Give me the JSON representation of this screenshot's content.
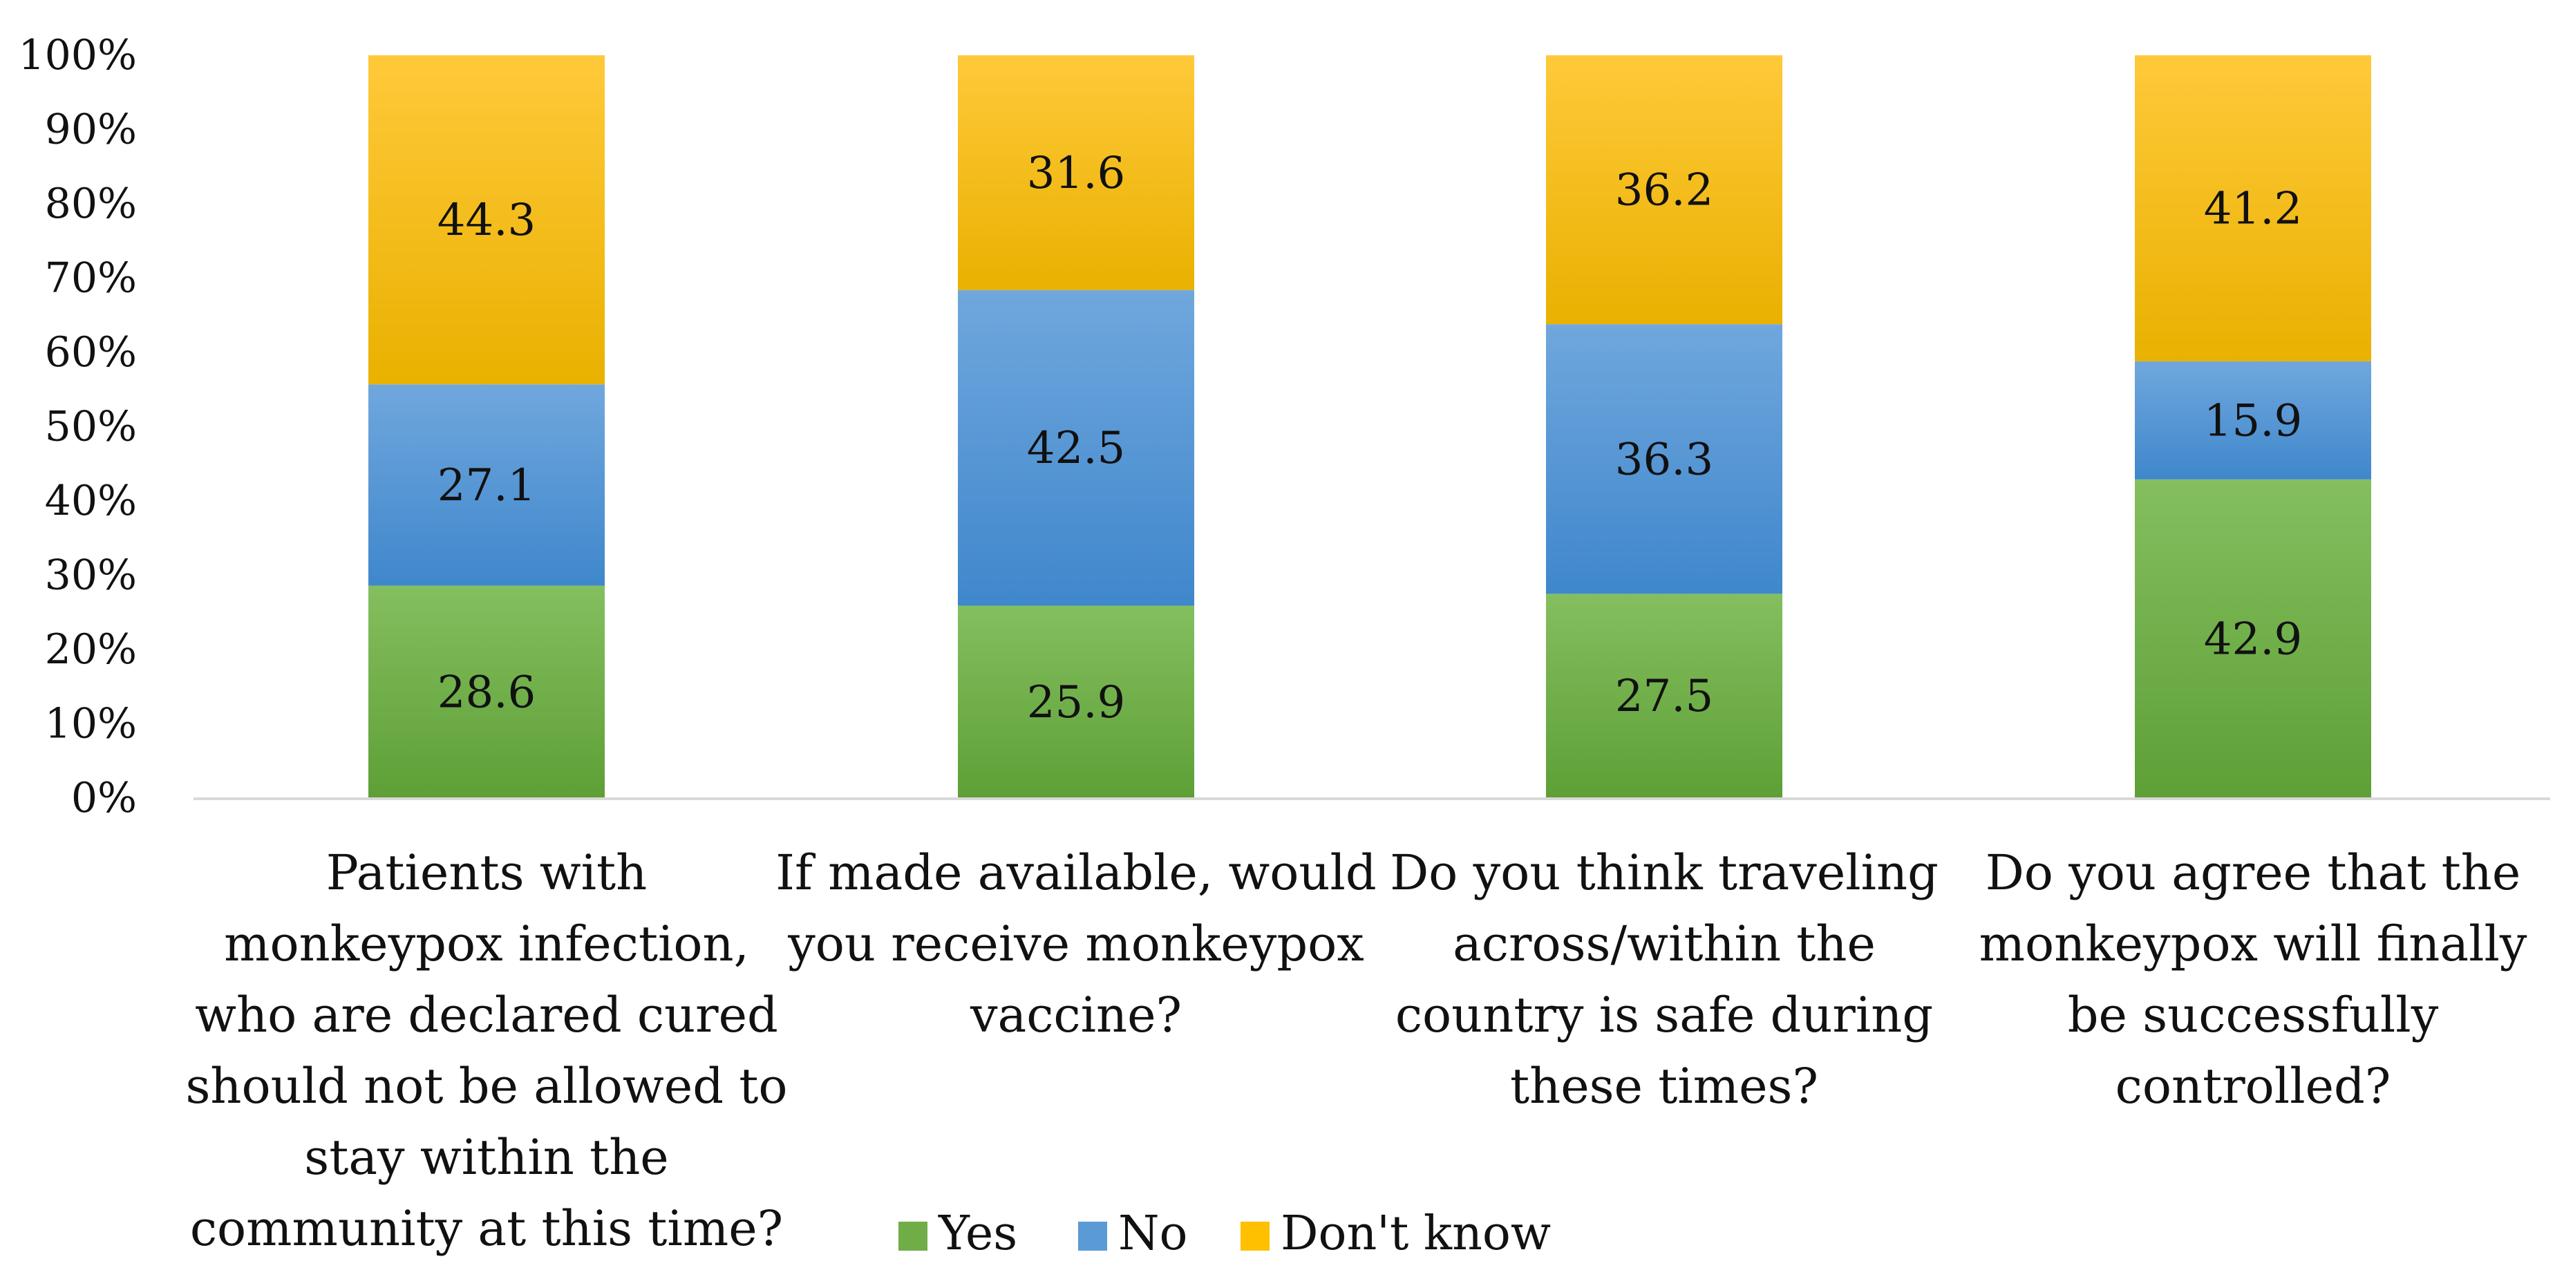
{
  "chart_data": {
    "type": "bar",
    "stacked": true,
    "percent_stacked": true,
    "categories": [
      [
        "Patients with",
        "monkeypox infection,",
        "who are declared cured",
        "should not be allowed to",
        "stay within the",
        "community at this time?"
      ],
      [
        "If made available, would",
        "you receive monkeypox",
        "vaccine?"
      ],
      [
        "Do you think traveling",
        "across/within the",
        "country is safe during",
        "these times?"
      ],
      [
        "Do you agree that the",
        "monkeypox will finally",
        "be successfully",
        "controlled?"
      ]
    ],
    "series": [
      {
        "name": "Yes",
        "values": [
          28.6,
          25.9,
          27.5,
          42.9
        ],
        "color": "#70AD47",
        "labels": [
          "28.6",
          "25.9",
          "27.5",
          "42.9"
        ]
      },
      {
        "name": "No",
        "values": [
          27.1,
          42.5,
          36.3,
          15.9
        ],
        "color": "#5B9BD5",
        "labels": [
          "27.1",
          "42.5",
          "36.3",
          "15.9"
        ]
      },
      {
        "name": "Don't know",
        "values": [
          44.3,
          31.6,
          36.2,
          41.2
        ],
        "color": "#FFC000",
        "labels": [
          "44.3",
          "31.6",
          "36.2",
          "41.2"
        ]
      }
    ],
    "yticks": [
      "0%",
      "10%",
      "20%",
      "30%",
      "40%",
      "50%",
      "60%",
      "70%",
      "80%",
      "90%",
      "100%"
    ],
    "ylim": [
      0,
      100
    ],
    "legend_position": "bottom",
    "grid": false
  }
}
